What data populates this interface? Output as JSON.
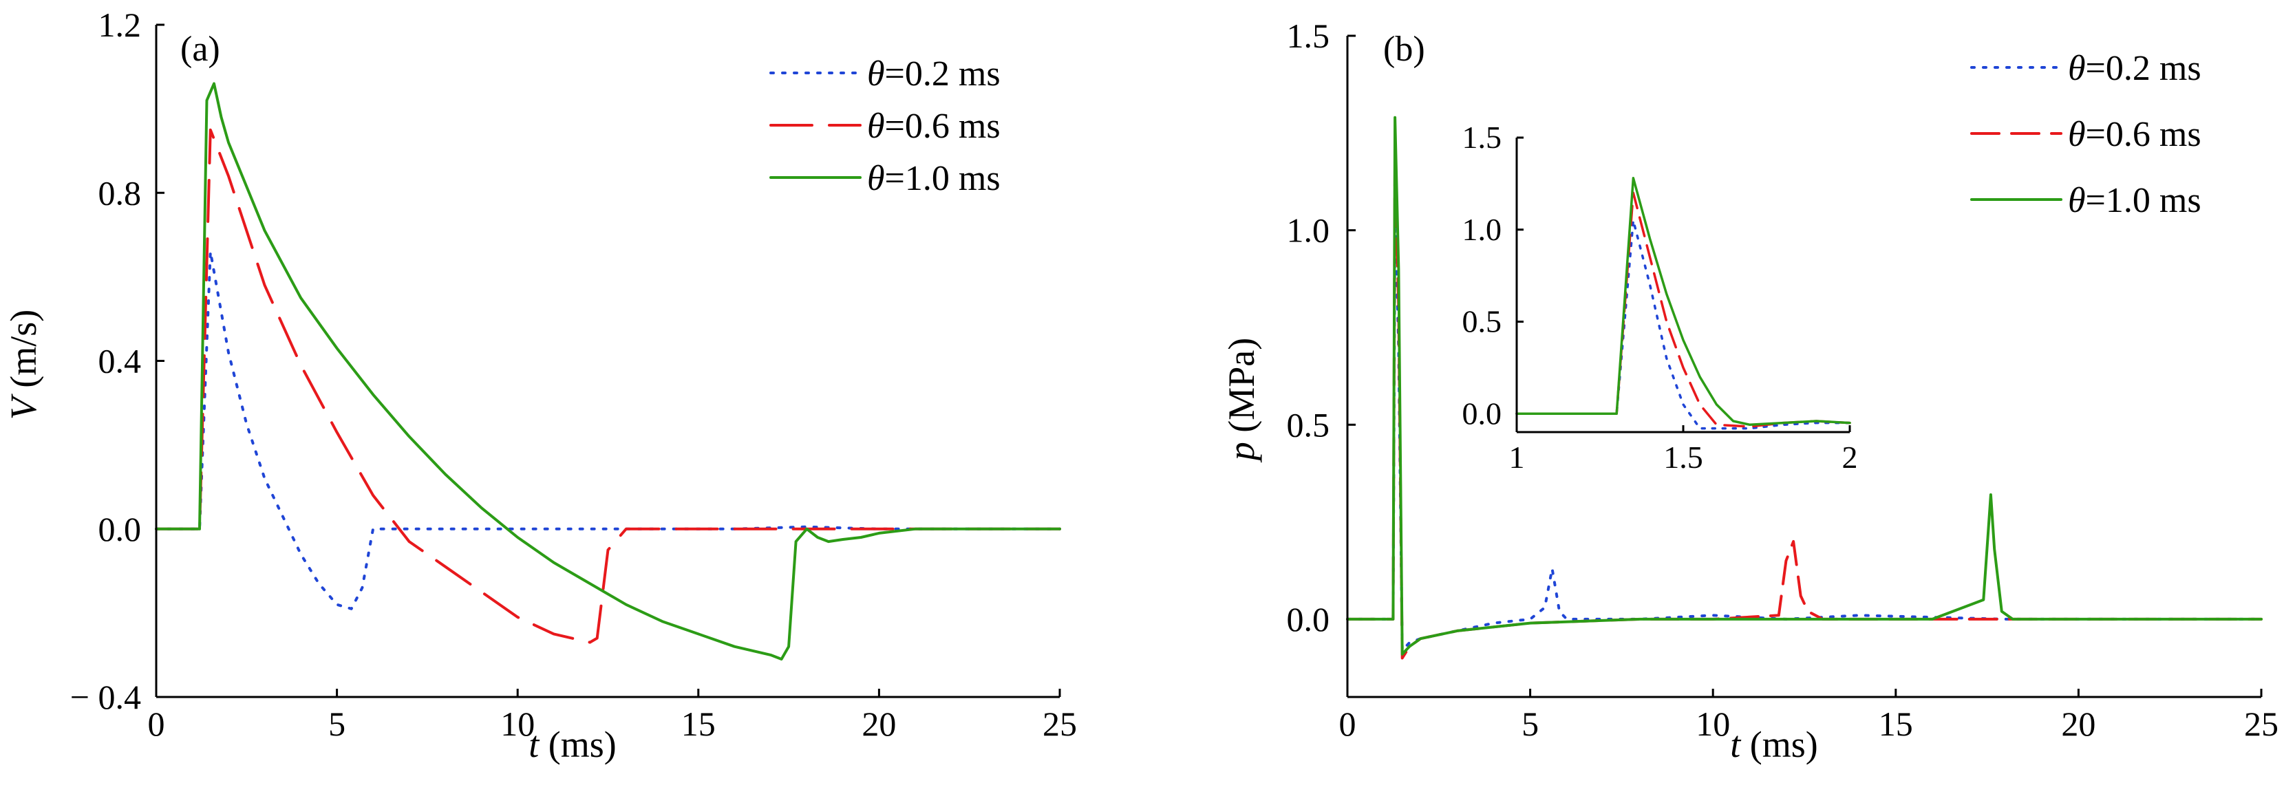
{
  "chart_data": [
    {
      "type": "line",
      "panel_label": "(a)",
      "xlabel": {
        "var": "t",
        "unit": " (ms)"
      },
      "ylabel": {
        "var": "V",
        "unit": " (m/s)"
      },
      "xlim": [
        0,
        25
      ],
      "ylim": [
        -0.4,
        1.2
      ],
      "xticks": [
        0,
        5,
        10,
        15,
        20,
        25
      ],
      "xtick_labels": [
        "0",
        "5",
        "10",
        "15",
        "20",
        "25"
      ],
      "yticks": [
        -0.4,
        0.0,
        0.4,
        0.8,
        1.2
      ],
      "ytick_labels": [
        "− 0.4",
        "0.0",
        "0.4",
        "0.8",
        "1.2"
      ],
      "legend_placement": "top-right",
      "series": [
        {
          "name": "θ=0.2 ms",
          "color": "#1f45d6",
          "dash": "dot",
          "x": [
            0,
            1.2,
            1.5,
            2.0,
            2.5,
            3.0,
            3.5,
            4.0,
            4.5,
            5.0,
            5.4,
            5.7,
            6.0,
            8.0,
            12.0,
            16.0,
            18.0,
            20.0,
            25.0
          ],
          "y": [
            0.0,
            0.0,
            0.66,
            0.42,
            0.25,
            0.12,
            0.03,
            -0.06,
            -0.13,
            -0.18,
            -0.19,
            -0.14,
            0.0,
            0.0,
            0.0,
            0.0,
            0.005,
            0.0,
            0.0
          ]
        },
        {
          "name": "θ=0.6 ms",
          "color": "#e8191c",
          "dash": "dash",
          "x": [
            0,
            1.2,
            1.5,
            2.0,
            3.0,
            4.0,
            5.0,
            6.0,
            7.0,
            8.0,
            9.0,
            10.0,
            11.0,
            12.0,
            12.2,
            12.5,
            13.0,
            18.0,
            25.0
          ],
          "y": [
            0.0,
            0.0,
            0.95,
            0.84,
            0.58,
            0.39,
            0.23,
            0.08,
            -0.03,
            -0.09,
            -0.15,
            -0.21,
            -0.25,
            -0.27,
            -0.26,
            -0.05,
            0.0,
            0.0,
            0.0
          ],
          "dashes": [
            60,
            25
          ]
        },
        {
          "name": "θ=1.0 ms",
          "color": "#2c9c16",
          "dash": "solid",
          "x": [
            0,
            1.2,
            1.4,
            1.6,
            1.8,
            2.0,
            3.0,
            4.0,
            5.0,
            6.0,
            7.0,
            8.0,
            9.0,
            10.0,
            11.0,
            12.0,
            13.0,
            14.0,
            15.0,
            16.0,
            17.0,
            17.3,
            17.5,
            17.7,
            18.0,
            18.3,
            18.6,
            19.0,
            19.5,
            20.0,
            21.0,
            25.0
          ],
          "y": [
            0.0,
            0.0,
            1.02,
            1.06,
            0.98,
            0.92,
            0.71,
            0.55,
            0.43,
            0.32,
            0.22,
            0.13,
            0.05,
            -0.02,
            -0.08,
            -0.13,
            -0.18,
            -0.22,
            -0.25,
            -0.28,
            -0.3,
            -0.31,
            -0.28,
            -0.03,
            0.0,
            -0.02,
            -0.03,
            -0.025,
            -0.02,
            -0.01,
            0.0,
            0.0
          ]
        }
      ]
    },
    {
      "type": "line",
      "panel_label": "(b)",
      "xlabel": {
        "var": "t",
        "unit": " (ms)"
      },
      "ylabel": {
        "var": "p",
        "unit": " (MPa)"
      },
      "xlim": [
        0,
        25
      ],
      "ylim": [
        -0.2,
        1.5
      ],
      "xticks": [
        0,
        5,
        10,
        15,
        20,
        25
      ],
      "xtick_labels": [
        "0",
        "5",
        "10",
        "15",
        "20",
        "25"
      ],
      "yticks": [
        0.0,
        0.5,
        1.0,
        1.5
      ],
      "ytick_labels": [
        "0.0",
        "0.5",
        "1.0",
        "1.5"
      ],
      "legend_placement": "top-right",
      "series": [
        {
          "name": "θ=0.2 ms",
          "color": "#1f45d6",
          "dash": "dot",
          "x": [
            0,
            1.25,
            1.3,
            1.4,
            1.5,
            1.7,
            2.0,
            3.0,
            4.0,
            5.0,
            5.4,
            5.6,
            5.8,
            6.0,
            8.0,
            10.0,
            12.0,
            14.0,
            18.0,
            25.0
          ],
          "y": [
            0.0,
            0.0,
            1.05,
            0.7,
            -0.08,
            -0.06,
            -0.05,
            -0.03,
            -0.01,
            0.0,
            0.03,
            0.13,
            0.02,
            0.0,
            0.0,
            0.01,
            0.0,
            0.01,
            0.0,
            0.0
          ]
        },
        {
          "name": "θ=0.6 ms",
          "color": "#e8191c",
          "dash": "dash",
          "x": [
            0,
            1.25,
            1.3,
            1.4,
            1.5,
            1.7,
            2.0,
            3.0,
            5.0,
            8.0,
            10.0,
            11.8,
            12.0,
            12.2,
            12.4,
            12.6,
            13.0,
            16.0,
            20.0,
            25.0
          ],
          "y": [
            0.0,
            0.0,
            1.2,
            0.8,
            -0.1,
            -0.07,
            -0.05,
            -0.03,
            -0.01,
            0.0,
            0.0,
            0.01,
            0.15,
            0.2,
            0.06,
            0.02,
            0.0,
            0.0,
            0.0,
            0.0
          ],
          "dashes": [
            40,
            18
          ]
        },
        {
          "name": "θ=1.0 ms",
          "color": "#2c9c16",
          "dash": "solid",
          "x": [
            0,
            1.25,
            1.3,
            1.4,
            1.5,
            1.7,
            2.0,
            3.0,
            5.0,
            8.0,
            12.0,
            16.0,
            17.4,
            17.6,
            17.7,
            17.9,
            18.2,
            20.0,
            25.0
          ],
          "y": [
            0.0,
            0.0,
            1.29,
            0.9,
            -0.09,
            -0.07,
            -0.05,
            -0.03,
            -0.01,
            0.0,
            0.0,
            0.0,
            0.05,
            0.32,
            0.18,
            0.02,
            0.0,
            0.0,
            0.0
          ]
        }
      ],
      "inset": {
        "xlim": [
          1,
          2
        ],
        "ylim": [
          -0.1,
          1.5
        ],
        "xticks": [
          1,
          1.5,
          2
        ],
        "xtick_labels": [
          "1",
          "1.5",
          "2"
        ],
        "yticks": [
          0.0,
          0.5,
          1.0,
          1.5
        ],
        "ytick_labels": [
          "0.0",
          "0.5",
          "1.0",
          "1.5"
        ],
        "series": [
          {
            "name": "θ=0.2 ms",
            "color": "#1f45d6",
            "dash": "dot",
            "x": [
              1.0,
              1.3,
              1.35,
              1.4,
              1.45,
              1.5,
              1.55,
              1.7,
              1.8,
              1.9,
              2.0
            ],
            "y": [
              0.0,
              0.0,
              1.05,
              0.7,
              0.3,
              0.05,
              -0.08,
              -0.08,
              -0.06,
              -0.05,
              -0.05
            ]
          },
          {
            "name": "θ=0.6 ms",
            "color": "#e8191c",
            "dash": "dash",
            "x": [
              1.0,
              1.3,
              1.35,
              1.4,
              1.45,
              1.5,
              1.55,
              1.6,
              1.7,
              1.8,
              1.9,
              2.0
            ],
            "y": [
              0.0,
              0.0,
              1.2,
              0.85,
              0.5,
              0.25,
              0.05,
              -0.06,
              -0.07,
              -0.05,
              -0.04,
              -0.05
            ],
            "dashes": [
              28,
              14
            ]
          },
          {
            "name": "θ=1.0 ms",
            "color": "#2c9c16",
            "dash": "solid",
            "x": [
              1.0,
              1.3,
              1.35,
              1.4,
              1.45,
              1.5,
              1.55,
              1.6,
              1.65,
              1.7,
              1.8,
              1.9,
              2.0
            ],
            "y": [
              0.0,
              0.0,
              1.28,
              0.95,
              0.65,
              0.4,
              0.2,
              0.05,
              -0.04,
              -0.06,
              -0.05,
              -0.04,
              -0.05
            ]
          }
        ]
      }
    }
  ]
}
